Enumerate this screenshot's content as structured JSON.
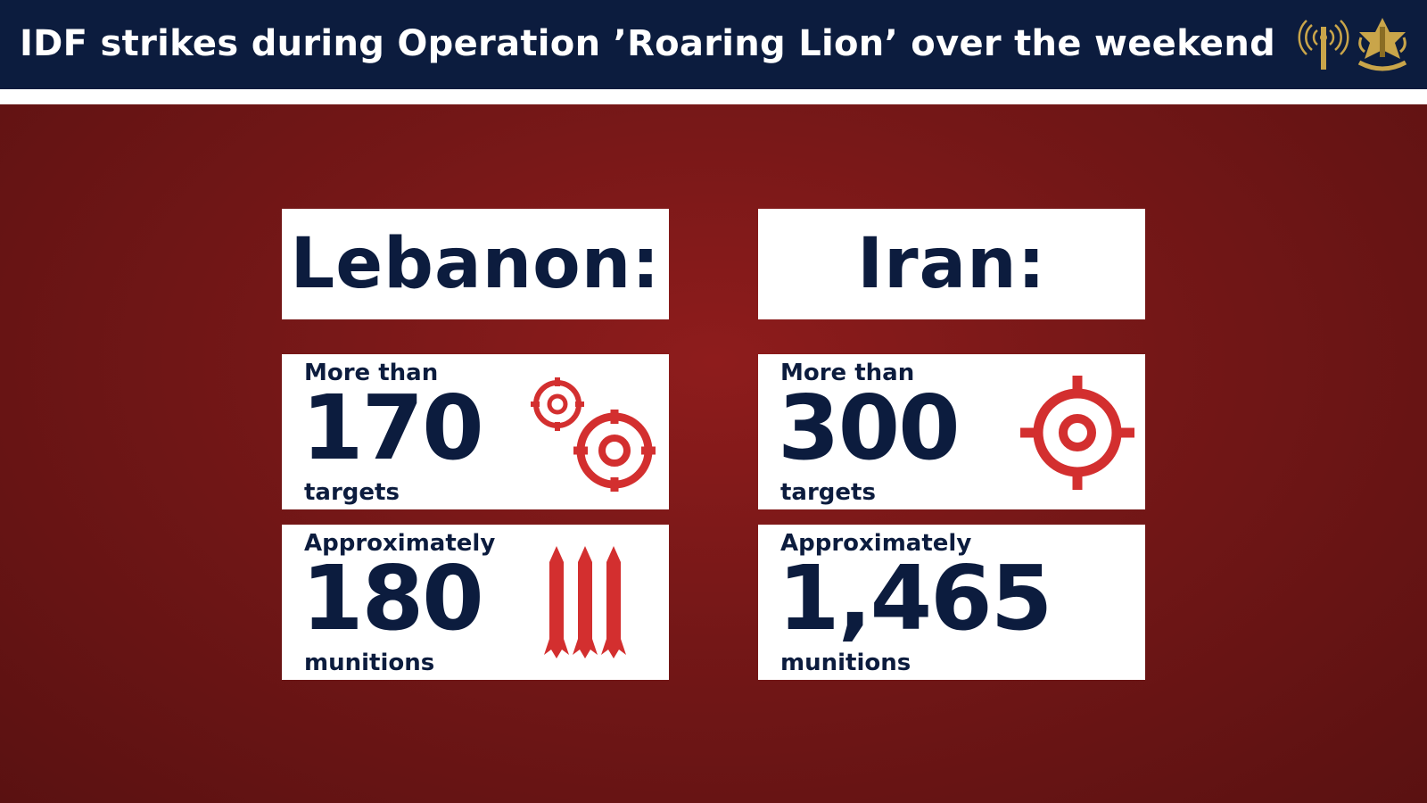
{
  "header": {
    "title": "IDF strikes during Operation ’Roaring Lion’ over the weekend"
  },
  "logos": [
    "signal-corps-logo",
    "idf-emblem"
  ],
  "colors": {
    "navy": "#0c1c3e",
    "background_red": "#7a1818",
    "accent_red": "#d32f2f",
    "white": "#ffffff"
  },
  "columns": [
    {
      "country": "Lebanon:",
      "targets": {
        "prefix": "More than",
        "value": "170",
        "unit": "targets",
        "icon": "double-target-icon"
      },
      "munitions": {
        "prefix": "Approximately",
        "value": "180",
        "unit": "munitions",
        "icon": "missiles-icon"
      }
    },
    {
      "country": "Iran:",
      "targets": {
        "prefix": "More than",
        "value": "300",
        "unit": "targets",
        "icon": "target-icon"
      },
      "munitions": {
        "prefix": "Approximately",
        "value": "1,465",
        "unit": "munitions"
      }
    }
  ]
}
